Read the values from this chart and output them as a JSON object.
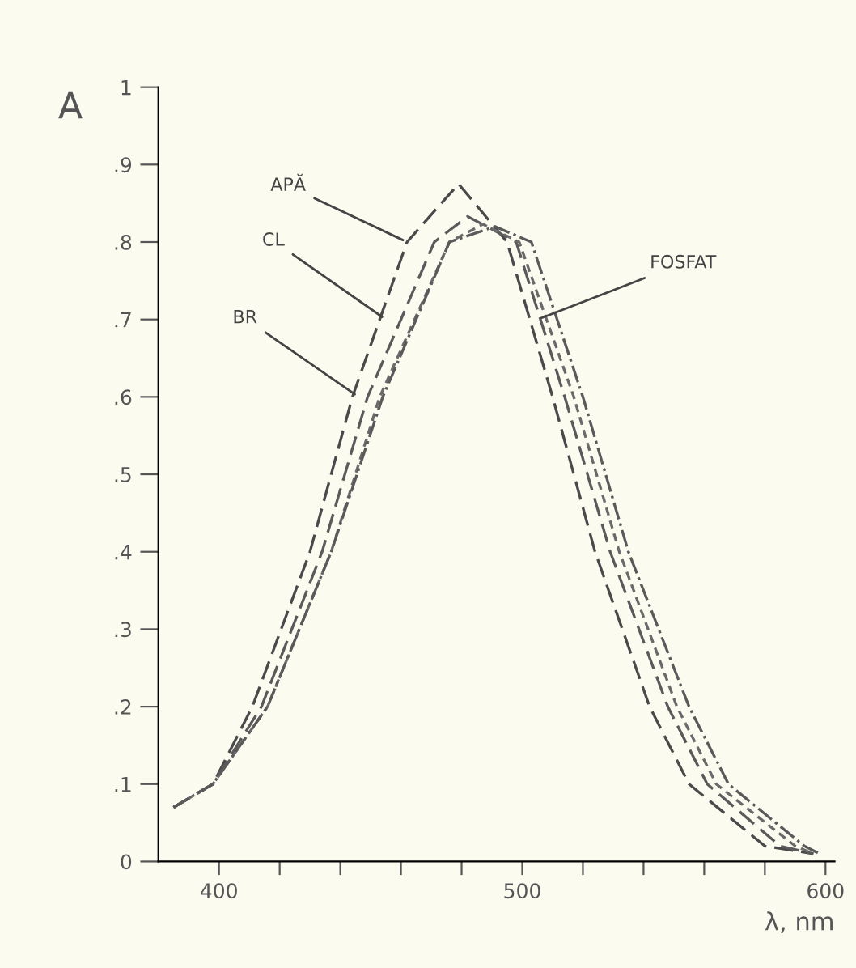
{
  "chart_data": {
    "type": "line",
    "xlabel": "λ, nm",
    "ylabel": "A",
    "xlim": [
      380,
      603
    ],
    "ylim": [
      0,
      1.0
    ],
    "xticks": [
      400,
      {
        "value": 420,
        "label": null
      },
      {
        "value": 440,
        "label": null
      },
      {
        "value": 460,
        "label": null
      },
      {
        "value": 480,
        "label": null
      },
      500,
      {
        "value": 520,
        "label": null
      },
      {
        "value": 540,
        "label": null
      },
      {
        "value": 560,
        "label": null
      },
      {
        "value": 580,
        "label": null
      },
      600
    ],
    "yticks": [
      {
        "value": 0,
        "label": "0"
      },
      {
        "value": 0.1,
        "label": ".1"
      },
      {
        "value": 0.2,
        "label": ".2"
      },
      {
        "value": 0.3,
        "label": ".3"
      },
      {
        "value": 0.4,
        "label": ".4"
      },
      {
        "value": 0.5,
        "label": ".5"
      },
      {
        "value": 0.6,
        "label": ".6"
      },
      {
        "value": 0.7,
        "label": ".7"
      },
      {
        "value": 0.8,
        "label": ".8"
      },
      {
        "value": 0.9,
        "label": ".9"
      },
      {
        "value": 1.0,
        "label": "1"
      }
    ],
    "grid": false,
    "legend": false,
    "marker": "none",
    "series": [
      {
        "color": "#4a4a4a",
        "line_style": "dashed",
        "x": [
          385,
          398,
          411,
          430,
          444,
          462,
          479,
          495,
          510,
          524,
          542,
          555,
          580,
          596
        ],
        "values": [
          0.07,
          0.1,
          0.2,
          0.4,
          0.6,
          0.8,
          0.875,
          0.8,
          0.6,
          0.4,
          0.2,
          0.1,
          0.02,
          0.01
        ]
      },
      {
        "color": "#5a5a5a",
        "line_style": "dashed",
        "x": [
          385,
          398,
          414,
          434,
          449,
          471,
          482,
          498,
          514,
          529,
          548,
          561,
          585,
          596
        ],
        "values": [
          0.07,
          0.1,
          0.2,
          0.4,
          0.6,
          0.8,
          0.833,
          0.8,
          0.6,
          0.4,
          0.2,
          0.1,
          0.02,
          0.01
        ]
      },
      {
        "color": "#6a6a6a",
        "line_style": "dotted",
        "x": [
          385,
          398,
          416,
          437,
          453,
          476,
          487,
          499,
          517,
          532,
          551,
          564,
          590,
          596
        ],
        "values": [
          0.07,
          0.1,
          0.2,
          0.4,
          0.6,
          0.8,
          0.823,
          0.8,
          0.6,
          0.4,
          0.2,
          0.1,
          0.02,
          0.01
        ]
      },
      {
        "color": "#5a5a5a",
        "line_style": "dashdot",
        "x": [
          385,
          398,
          416,
          437,
          454,
          476,
          491,
          503,
          520,
          535,
          555,
          568,
          593,
          598
        ],
        "values": [
          0.07,
          0.1,
          0.2,
          0.4,
          0.6,
          0.8,
          0.82,
          0.8,
          0.6,
          0.4,
          0.2,
          0.1,
          0.02,
          0.01
        ]
      }
    ],
    "annotations": [
      {
        "text": "APĂ",
        "x": 462,
        "y": 0.8
      },
      {
        "text": "CL",
        "x": 455,
        "y": 0.7
      },
      {
        "text": "BR",
        "x": 446,
        "y": 0.6
      },
      {
        "text": "FOSFAT",
        "x": 505,
        "y": 0.7
      }
    ]
  }
}
